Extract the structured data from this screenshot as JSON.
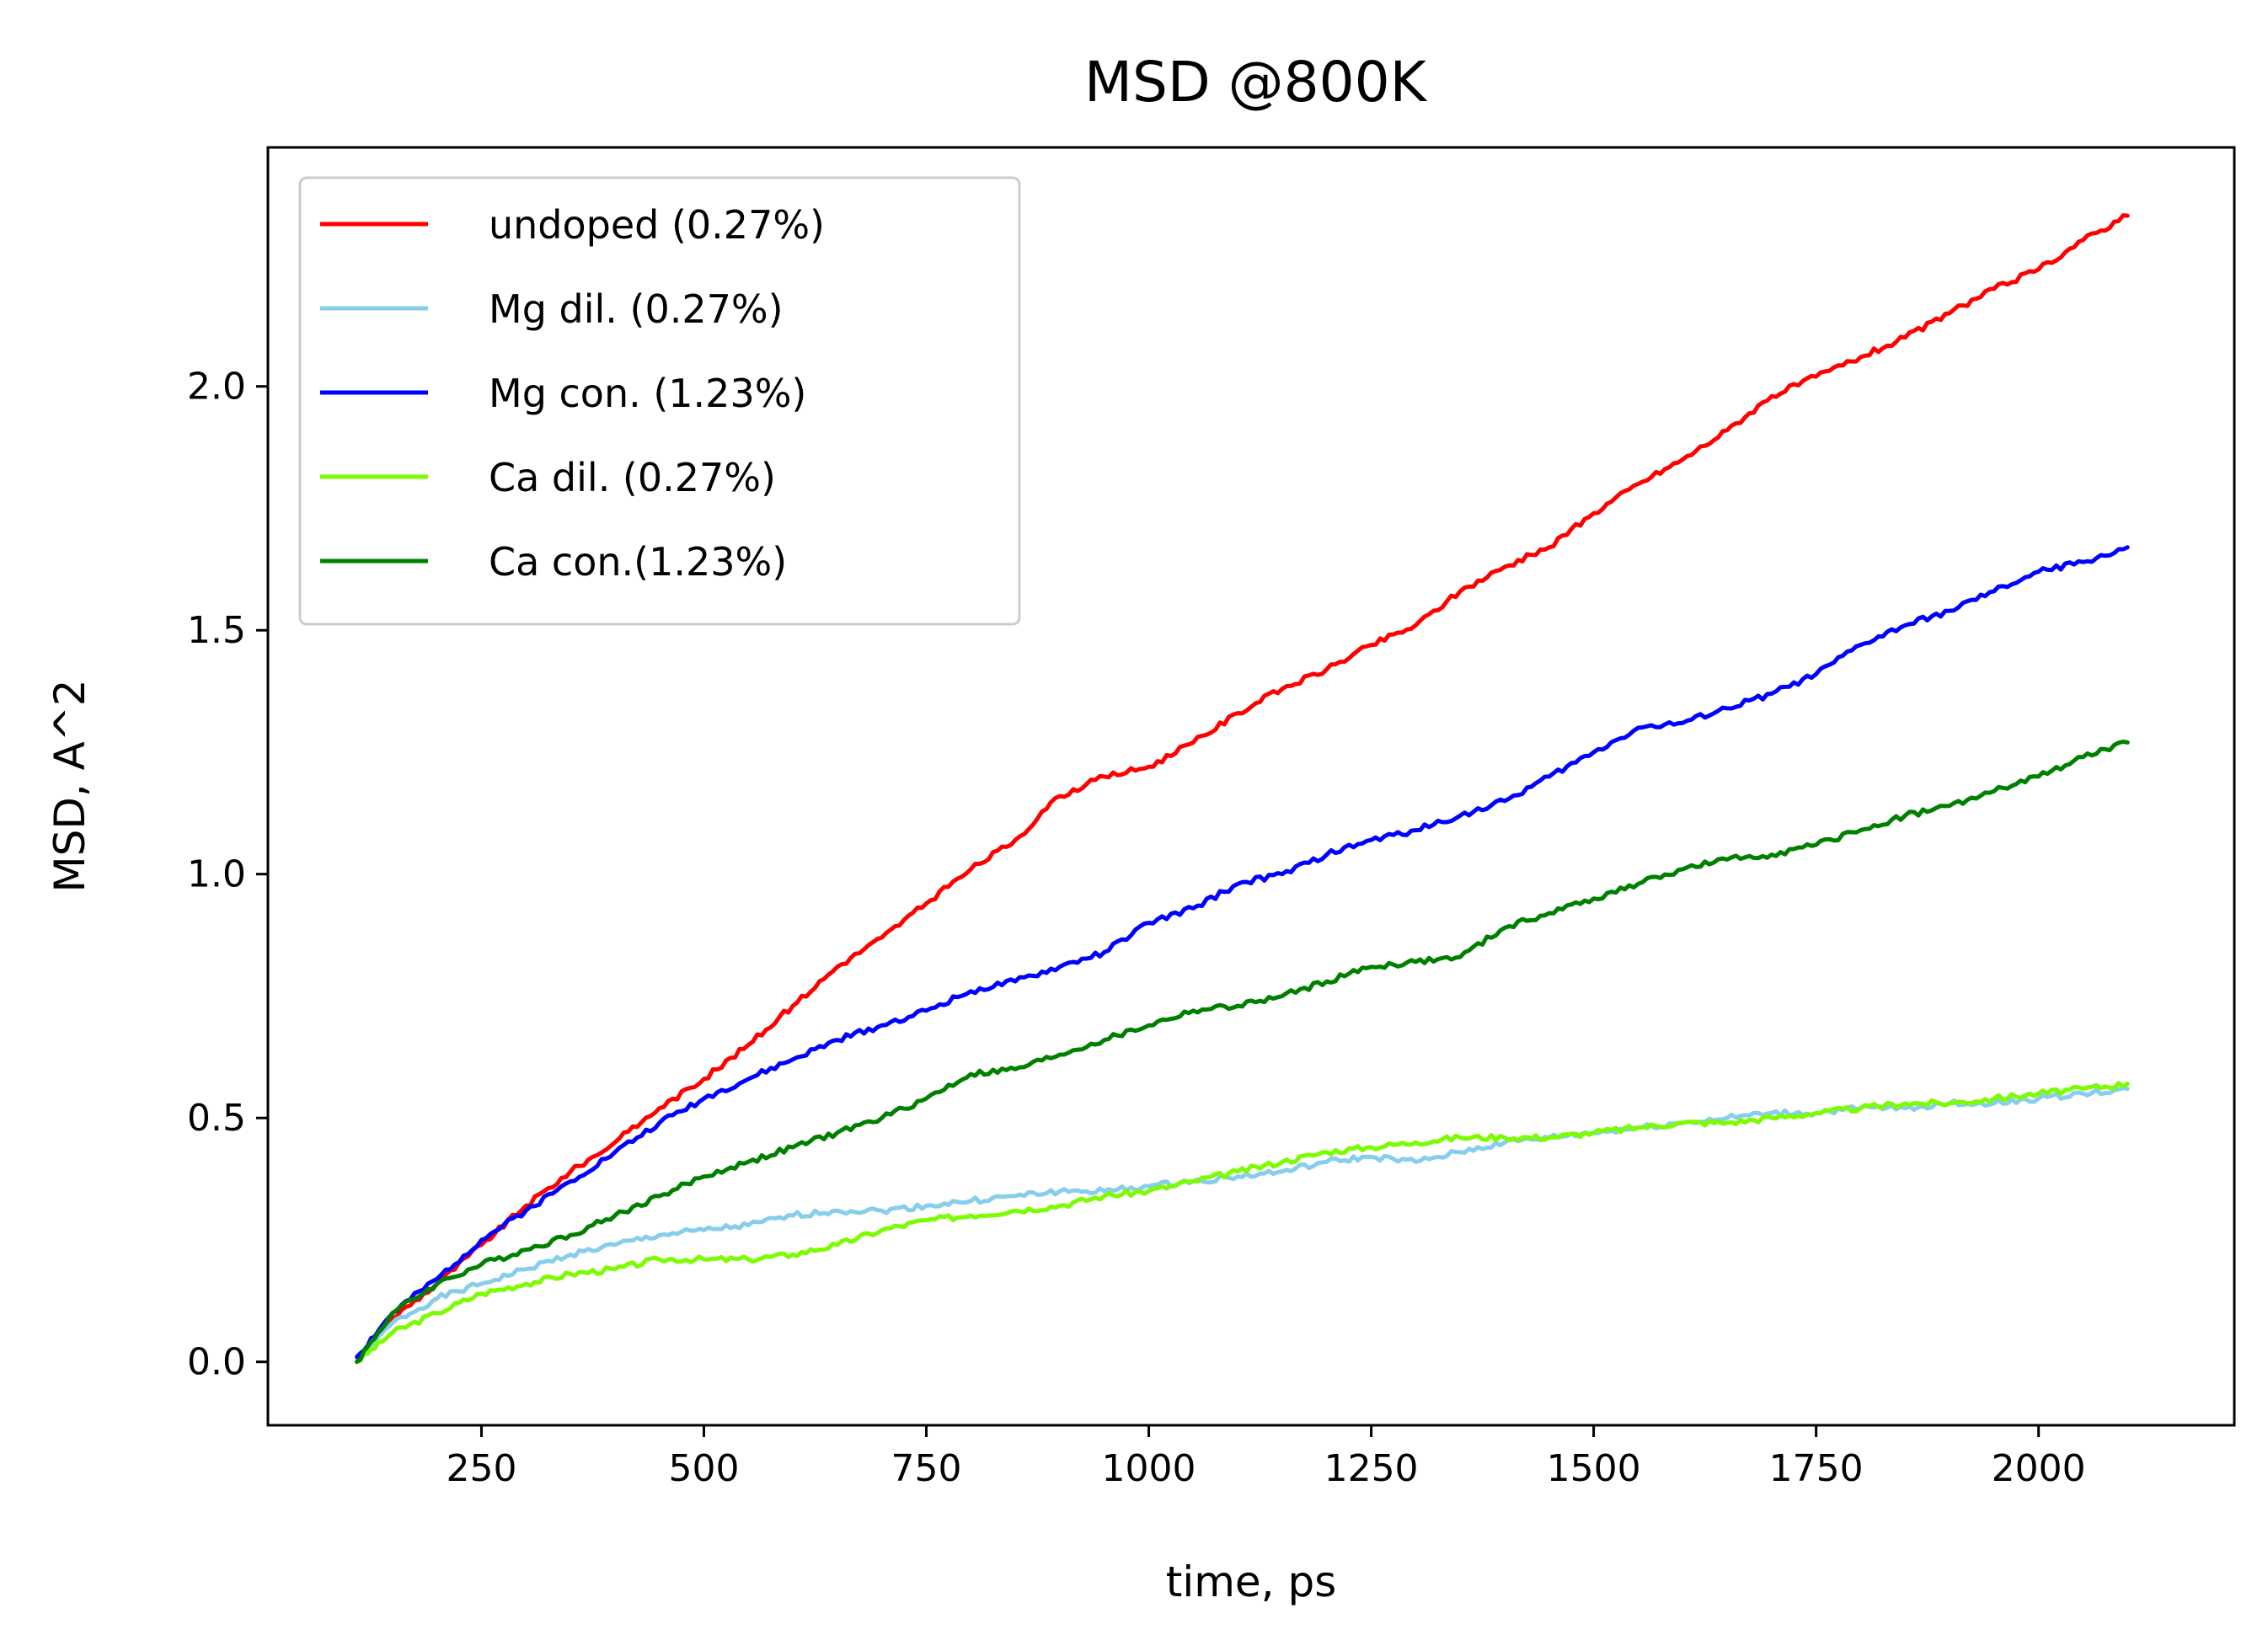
{
  "chart_data": {
    "type": "line",
    "title": "MSD @800K",
    "xlabel": "time, ps",
    "ylabel": "MSD, A^2",
    "xlim": [
      10,
      2220
    ],
    "ylim": [
      -0.13,
      2.49
    ],
    "xticks": [
      250,
      500,
      750,
      1000,
      1250,
      1500,
      1750,
      2000
    ],
    "yticks": [
      0.0,
      0.5,
      1.0,
      1.5,
      2.0
    ],
    "xtick_labels": [
      "250",
      "500",
      "750",
      "1000",
      "1250",
      "1500",
      "1750",
      "2000"
    ],
    "ytick_labels": [
      "0.0",
      "0.5",
      "1.0",
      "1.5",
      "2.0"
    ],
    "grid": false,
    "legend_position": "top-left",
    "series": [
      {
        "name": "undoped (0.27%)",
        "color": "#ff0000",
        "x": [
          110,
          150,
          200,
          250,
          300,
          350,
          400,
          450,
          500,
          550,
          600,
          650,
          700,
          750,
          800,
          850,
          900,
          950,
          1000,
          1050,
          1100,
          1150,
          1200,
          1250,
          1300,
          1350,
          1400,
          1450,
          1500,
          1550,
          1600,
          1650,
          1700,
          1750,
          1800,
          1850,
          1900,
          1950,
          2000,
          2050,
          2100
        ],
        "y": [
          0.0,
          0.09,
          0.16,
          0.24,
          0.32,
          0.39,
          0.45,
          0.52,
          0.58,
          0.65,
          0.73,
          0.81,
          0.87,
          0.94,
          1.01,
          1.07,
          1.16,
          1.2,
          1.22,
          1.27,
          1.33,
          1.38,
          1.42,
          1.47,
          1.51,
          1.58,
          1.63,
          1.67,
          1.74,
          1.8,
          1.85,
          1.91,
          1.98,
          2.02,
          2.06,
          2.1,
          2.15,
          2.2,
          2.24,
          2.3,
          2.35
        ]
      },
      {
        "name": "Mg dil. (0.27%)",
        "color": "#87ceeb",
        "x": [
          110,
          150,
          200,
          250,
          300,
          350,
          400,
          450,
          500,
          550,
          600,
          650,
          700,
          750,
          800,
          850,
          900,
          950,
          1000,
          1050,
          1100,
          1150,
          1200,
          1250,
          1300,
          1350,
          1400,
          1450,
          1500,
          1550,
          1600,
          1650,
          1700,
          1750,
          1800,
          1850,
          1900,
          1950,
          2000,
          2050,
          2100
        ],
        "y": [
          0.0,
          0.08,
          0.13,
          0.16,
          0.19,
          0.22,
          0.24,
          0.26,
          0.27,
          0.28,
          0.3,
          0.31,
          0.31,
          0.32,
          0.33,
          0.34,
          0.35,
          0.35,
          0.36,
          0.37,
          0.38,
          0.39,
          0.41,
          0.42,
          0.41,
          0.43,
          0.45,
          0.46,
          0.47,
          0.48,
          0.49,
          0.5,
          0.51,
          0.51,
          0.52,
          0.52,
          0.53,
          0.53,
          0.54,
          0.55,
          0.56
        ]
      },
      {
        "name": "Mg con. (1.23%)",
        "color": "#0000ff",
        "x": [
          110,
          150,
          200,
          250,
          300,
          350,
          400,
          450,
          500,
          550,
          600,
          650,
          700,
          750,
          800,
          850,
          900,
          950,
          1000,
          1050,
          1100,
          1150,
          1200,
          1250,
          1300,
          1350,
          1400,
          1450,
          1500,
          1550,
          1600,
          1650,
          1700,
          1750,
          1800,
          1850,
          1900,
          1950,
          2000,
          2050,
          2100
        ],
        "y": [
          0.01,
          0.1,
          0.17,
          0.25,
          0.31,
          0.37,
          0.43,
          0.49,
          0.54,
          0.58,
          0.62,
          0.66,
          0.69,
          0.72,
          0.76,
          0.78,
          0.81,
          0.84,
          0.9,
          0.93,
          0.98,
          1.0,
          1.04,
          1.07,
          1.09,
          1.12,
          1.15,
          1.2,
          1.25,
          1.3,
          1.31,
          1.34,
          1.37,
          1.41,
          1.47,
          1.51,
          1.54,
          1.58,
          1.62,
          1.64,
          1.67
        ]
      },
      {
        "name": "Ca dil. (0.27%)",
        "color": "#7cfc00",
        "x": [
          110,
          150,
          200,
          250,
          300,
          350,
          400,
          450,
          500,
          550,
          600,
          650,
          700,
          750,
          800,
          850,
          900,
          950,
          1000,
          1050,
          1100,
          1150,
          1200,
          1250,
          1300,
          1350,
          1400,
          1450,
          1500,
          1550,
          1600,
          1650,
          1700,
          1750,
          1800,
          1850,
          1900,
          1950,
          2000,
          2050,
          2100
        ],
        "y": [
          0.0,
          0.06,
          0.1,
          0.14,
          0.16,
          0.18,
          0.19,
          0.21,
          0.21,
          0.21,
          0.22,
          0.24,
          0.27,
          0.29,
          0.3,
          0.31,
          0.32,
          0.34,
          0.35,
          0.37,
          0.39,
          0.41,
          0.43,
          0.44,
          0.45,
          0.46,
          0.46,
          0.46,
          0.47,
          0.48,
          0.49,
          0.49,
          0.5,
          0.51,
          0.52,
          0.53,
          0.53,
          0.54,
          0.55,
          0.56,
          0.57
        ]
      },
      {
        "name": "Ca con.(1.23%)",
        "color": "#008000",
        "x": [
          110,
          150,
          200,
          250,
          300,
          350,
          400,
          450,
          500,
          550,
          600,
          650,
          700,
          750,
          800,
          850,
          900,
          950,
          1000,
          1050,
          1100,
          1150,
          1200,
          1250,
          1300,
          1350,
          1400,
          1450,
          1500,
          1550,
          1600,
          1650,
          1700,
          1750,
          1800,
          1850,
          1900,
          1950,
          2000,
          2050,
          2100
        ],
        "y": [
          0.0,
          0.1,
          0.16,
          0.2,
          0.23,
          0.26,
          0.3,
          0.34,
          0.38,
          0.41,
          0.44,
          0.47,
          0.5,
          0.54,
          0.59,
          0.6,
          0.63,
          0.66,
          0.69,
          0.72,
          0.73,
          0.75,
          0.78,
          0.81,
          0.82,
          0.83,
          0.89,
          0.92,
          0.95,
          0.98,
          1.01,
          1.03,
          1.04,
          1.06,
          1.09,
          1.12,
          1.14,
          1.17,
          1.2,
          1.24,
          1.27
        ]
      }
    ]
  }
}
